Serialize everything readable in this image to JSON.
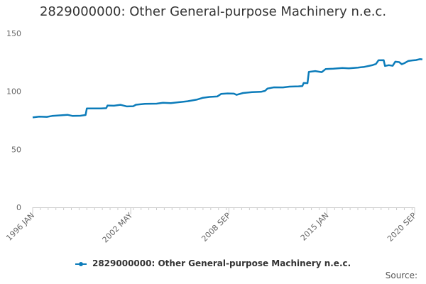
{
  "title": "2829000000: Other General-purpose Machinery n.e.c.",
  "source_label": "Source:",
  "colors": {
    "series": "#0c7cba",
    "axis": "#cccccc",
    "grid": "#e6e6e6",
    "text": "#666666"
  },
  "chart_data": {
    "type": "line",
    "title": "2829000000: Other General-purpose Machinery n.e.c.",
    "xlabel": "",
    "ylabel": "",
    "ylim": [
      0,
      150
    ],
    "yticks": [
      0,
      50,
      100,
      150
    ],
    "xticks": [
      "1996 JAN",
      "2002 MAY",
      "2008 SEP",
      "2015 JAN",
      "2020 SEP"
    ],
    "xrange": [
      "1996-01",
      "2020-09"
    ],
    "grid": false,
    "legend": "bottom",
    "series": [
      {
        "name": "2829000000: Other General-purpose Machinery n.e.c.",
        "points": [
          [
            "1996-01",
            77.5
          ],
          [
            "1996-06",
            78.2
          ],
          [
            "1996-12",
            78.0
          ],
          [
            "1997-04",
            78.8
          ],
          [
            "1997-10",
            79.3
          ],
          [
            "1998-04",
            79.8
          ],
          [
            "1998-08",
            78.8
          ],
          [
            "1999-02",
            79.0
          ],
          [
            "1999-06",
            79.6
          ],
          [
            "1999-07",
            85.2
          ],
          [
            "2000-01",
            85.3
          ],
          [
            "2000-06",
            85.2
          ],
          [
            "2000-10",
            85.5
          ],
          [
            "2000-11",
            87.8
          ],
          [
            "2001-04",
            87.6
          ],
          [
            "2001-09",
            88.4
          ],
          [
            "2002-02",
            87.0
          ],
          [
            "2002-07",
            87.2
          ],
          [
            "2002-09",
            88.5
          ],
          [
            "2003-04",
            89.2
          ],
          [
            "2004-01",
            89.4
          ],
          [
            "2004-06",
            90.1
          ],
          [
            "2004-12",
            89.8
          ],
          [
            "2005-06",
            90.6
          ],
          [
            "2006-01",
            91.5
          ],
          [
            "2006-08",
            92.8
          ],
          [
            "2007-01",
            94.5
          ],
          [
            "2007-06",
            95.2
          ],
          [
            "2007-12",
            95.6
          ],
          [
            "2008-03",
            97.8
          ],
          [
            "2008-08",
            98.2
          ],
          [
            "2009-01",
            98.0
          ],
          [
            "2009-03",
            97.0
          ],
          [
            "2009-08",
            98.6
          ],
          [
            "2010-03",
            99.3
          ],
          [
            "2010-10",
            99.6
          ],
          [
            "2011-01",
            100.4
          ],
          [
            "2011-03",
            102.4
          ],
          [
            "2011-08",
            103.5
          ],
          [
            "2012-03",
            103.4
          ],
          [
            "2012-08",
            104.1
          ],
          [
            "2013-03",
            104.3
          ],
          [
            "2013-06",
            104.6
          ],
          [
            "2013-07",
            107.2
          ],
          [
            "2013-10",
            107.1
          ],
          [
            "2013-11",
            116.8
          ],
          [
            "2014-04",
            117.5
          ],
          [
            "2014-09",
            116.6
          ],
          [
            "2014-12",
            119.2
          ],
          [
            "2015-06",
            119.6
          ],
          [
            "2016-01",
            120.2
          ],
          [
            "2016-06",
            119.8
          ],
          [
            "2017-01",
            120.5
          ],
          [
            "2017-06",
            121.1
          ],
          [
            "2017-12",
            122.5
          ],
          [
            "2018-03",
            123.6
          ],
          [
            "2018-05",
            126.8
          ],
          [
            "2018-09",
            126.9
          ],
          [
            "2018-10",
            121.9
          ],
          [
            "2019-01",
            122.6
          ],
          [
            "2019-04",
            122.1
          ],
          [
            "2019-06",
            125.6
          ],
          [
            "2019-09",
            125.2
          ],
          [
            "2019-11",
            123.4
          ],
          [
            "2020-01",
            124.3
          ],
          [
            "2020-04",
            126.2
          ],
          [
            "2020-07",
            126.7
          ],
          [
            "2020-10",
            127.0
          ],
          [
            "2021-01",
            127.8
          ],
          [
            "2021-04",
            127.6
          ]
        ]
      }
    ]
  }
}
